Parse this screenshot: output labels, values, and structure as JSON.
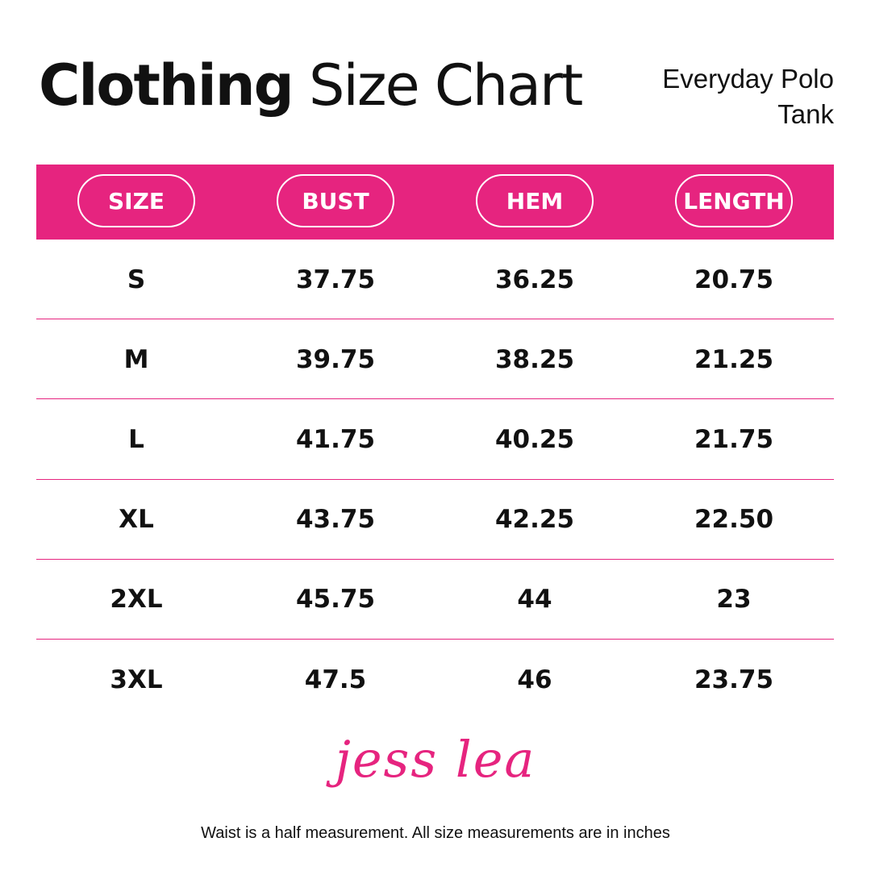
{
  "header": {
    "title_bold": "Clothing",
    "title_regular": "Size Chart",
    "product": "Everyday Polo Tank"
  },
  "table": {
    "columns": [
      "SIZE",
      "BUST",
      "HEM",
      "LENGTH"
    ],
    "rows": [
      [
        "S",
        "37.75",
        "36.25",
        "20.75"
      ],
      [
        "M",
        "39.75",
        "38.25",
        "21.25"
      ],
      [
        "L",
        "41.75",
        "40.25",
        "21.75"
      ],
      [
        "XL",
        "43.75",
        "42.25",
        "22.50"
      ],
      [
        "2XL",
        "45.75",
        "44",
        "23"
      ],
      [
        "3XL",
        "47.5",
        "46",
        "23.75"
      ]
    ]
  },
  "logo": "jess lea",
  "footer": {
    "note": "Waist is a half measurement. All size measurements are in inches"
  }
}
